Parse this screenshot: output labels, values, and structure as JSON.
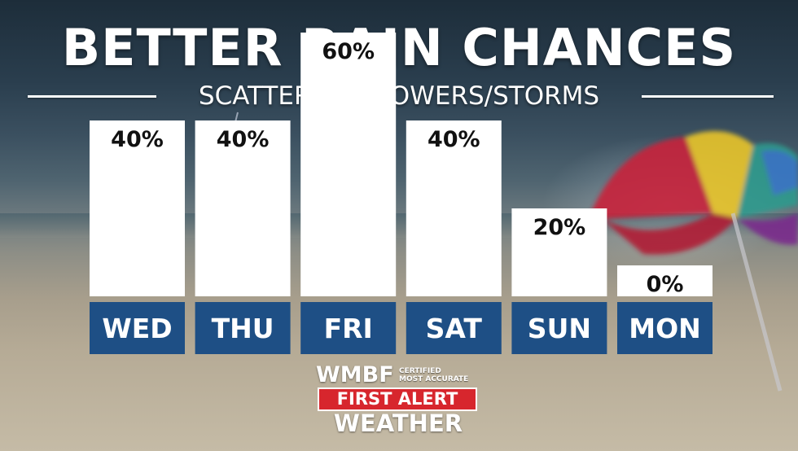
{
  "title": "BETTER RAIN CHANCES",
  "subtitle": "SCATTERED SHOWERS/STORMS",
  "logo": {
    "station": "WMBF",
    "certified": "CERTIFIED\nMOST ACCURATE",
    "first_alert": "FIRST ALERT",
    "weather": "WEATHER"
  },
  "colors": {
    "bar_fill": "#ffffff",
    "day_label_bg": "#1e4f85",
    "day_label_text": "#ffffff",
    "value_text": "#111111",
    "first_alert_red": "#d7262d"
  },
  "chart_data": {
    "type": "bar",
    "categories": [
      "WED",
      "THU",
      "FRI",
      "SAT",
      "SUN",
      "MON"
    ],
    "values": [
      40,
      40,
      60,
      40,
      20,
      0
    ],
    "value_labels": [
      "40%",
      "40%",
      "60%",
      "40%",
      "20%",
      "0%"
    ],
    "unit": "%",
    "ylim": [
      0,
      60
    ],
    "grid": false,
    "legend": "none"
  }
}
